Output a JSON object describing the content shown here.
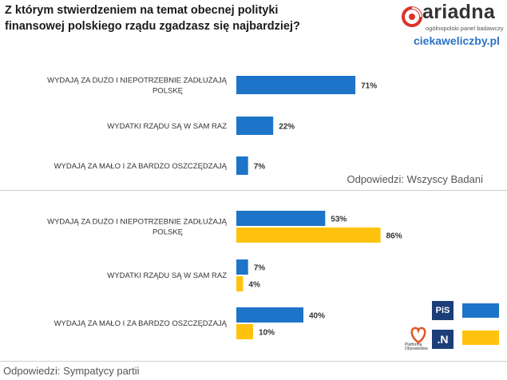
{
  "header": {
    "title": "Z którym stwierdzeniem na temat obecnej polityki finansowej polskiego rządu zgadzasz się najbardziej?",
    "brand": "ariadna",
    "brand_sub": "ogólnopolski panel badawczy",
    "site": "ciekaweliczby.pl"
  },
  "footnotes": {
    "all": "Odpowiedzi: Wszyscy Badani",
    "parties": "Odpowiedzi: Sympatycy  partii"
  },
  "legend": {
    "pis_label": "PiS",
    "n_label": ".N",
    "po_label": "Platforma Obywatelska"
  },
  "colors": {
    "blue": "#1e74c8",
    "yellow": "#ffc20e",
    "brand_red": "#d9342b"
  },
  "chart_data": [
    {
      "type": "bar",
      "orientation": "horizontal",
      "categories": [
        "WYDAJĄ ZA DUŻO I NIEPOTRZEBNIE ZADŁUŻAJĄ POLSKĘ",
        "WYDATKI RZĄDU SĄ W SAM RAZ",
        "WYDAJĄ ZA MAŁO I ZA BARDZO OSZCZĘDZAJĄ"
      ],
      "series": [
        {
          "values": [
            71,
            22,
            7
          ],
          "labels": [
            "71%",
            "22%",
            "7%"
          ],
          "color": "#1e74c8"
        }
      ],
      "xlim": [
        0,
        100
      ],
      "grid": false
    },
    {
      "type": "bar",
      "orientation": "horizontal",
      "categories": [
        "WYDAJĄ ZA DUŻO I NIEPOTRZEBNIE ZADŁUŻAJĄ POLSKĘ",
        "WYDATKI RZĄDU SĄ W SAM RAZ",
        "WYDAJĄ ZA MAŁO I ZA BARDZO OSZCZĘDZAJĄ"
      ],
      "series": [
        {
          "name": "PiS",
          "values": [
            53,
            7,
            40
          ],
          "labels": [
            "53%",
            "7%",
            "40%"
          ],
          "color": "#1e74c8"
        },
        {
          "name": "Platforma Obywatelska / .N",
          "values": [
            86,
            4,
            10
          ],
          "labels": [
            "86%",
            "4%",
            "10%"
          ],
          "color": "#ffc20e"
        }
      ],
      "xlim": [
        0,
        100
      ],
      "grid": false,
      "legend": "bottom-right"
    }
  ]
}
